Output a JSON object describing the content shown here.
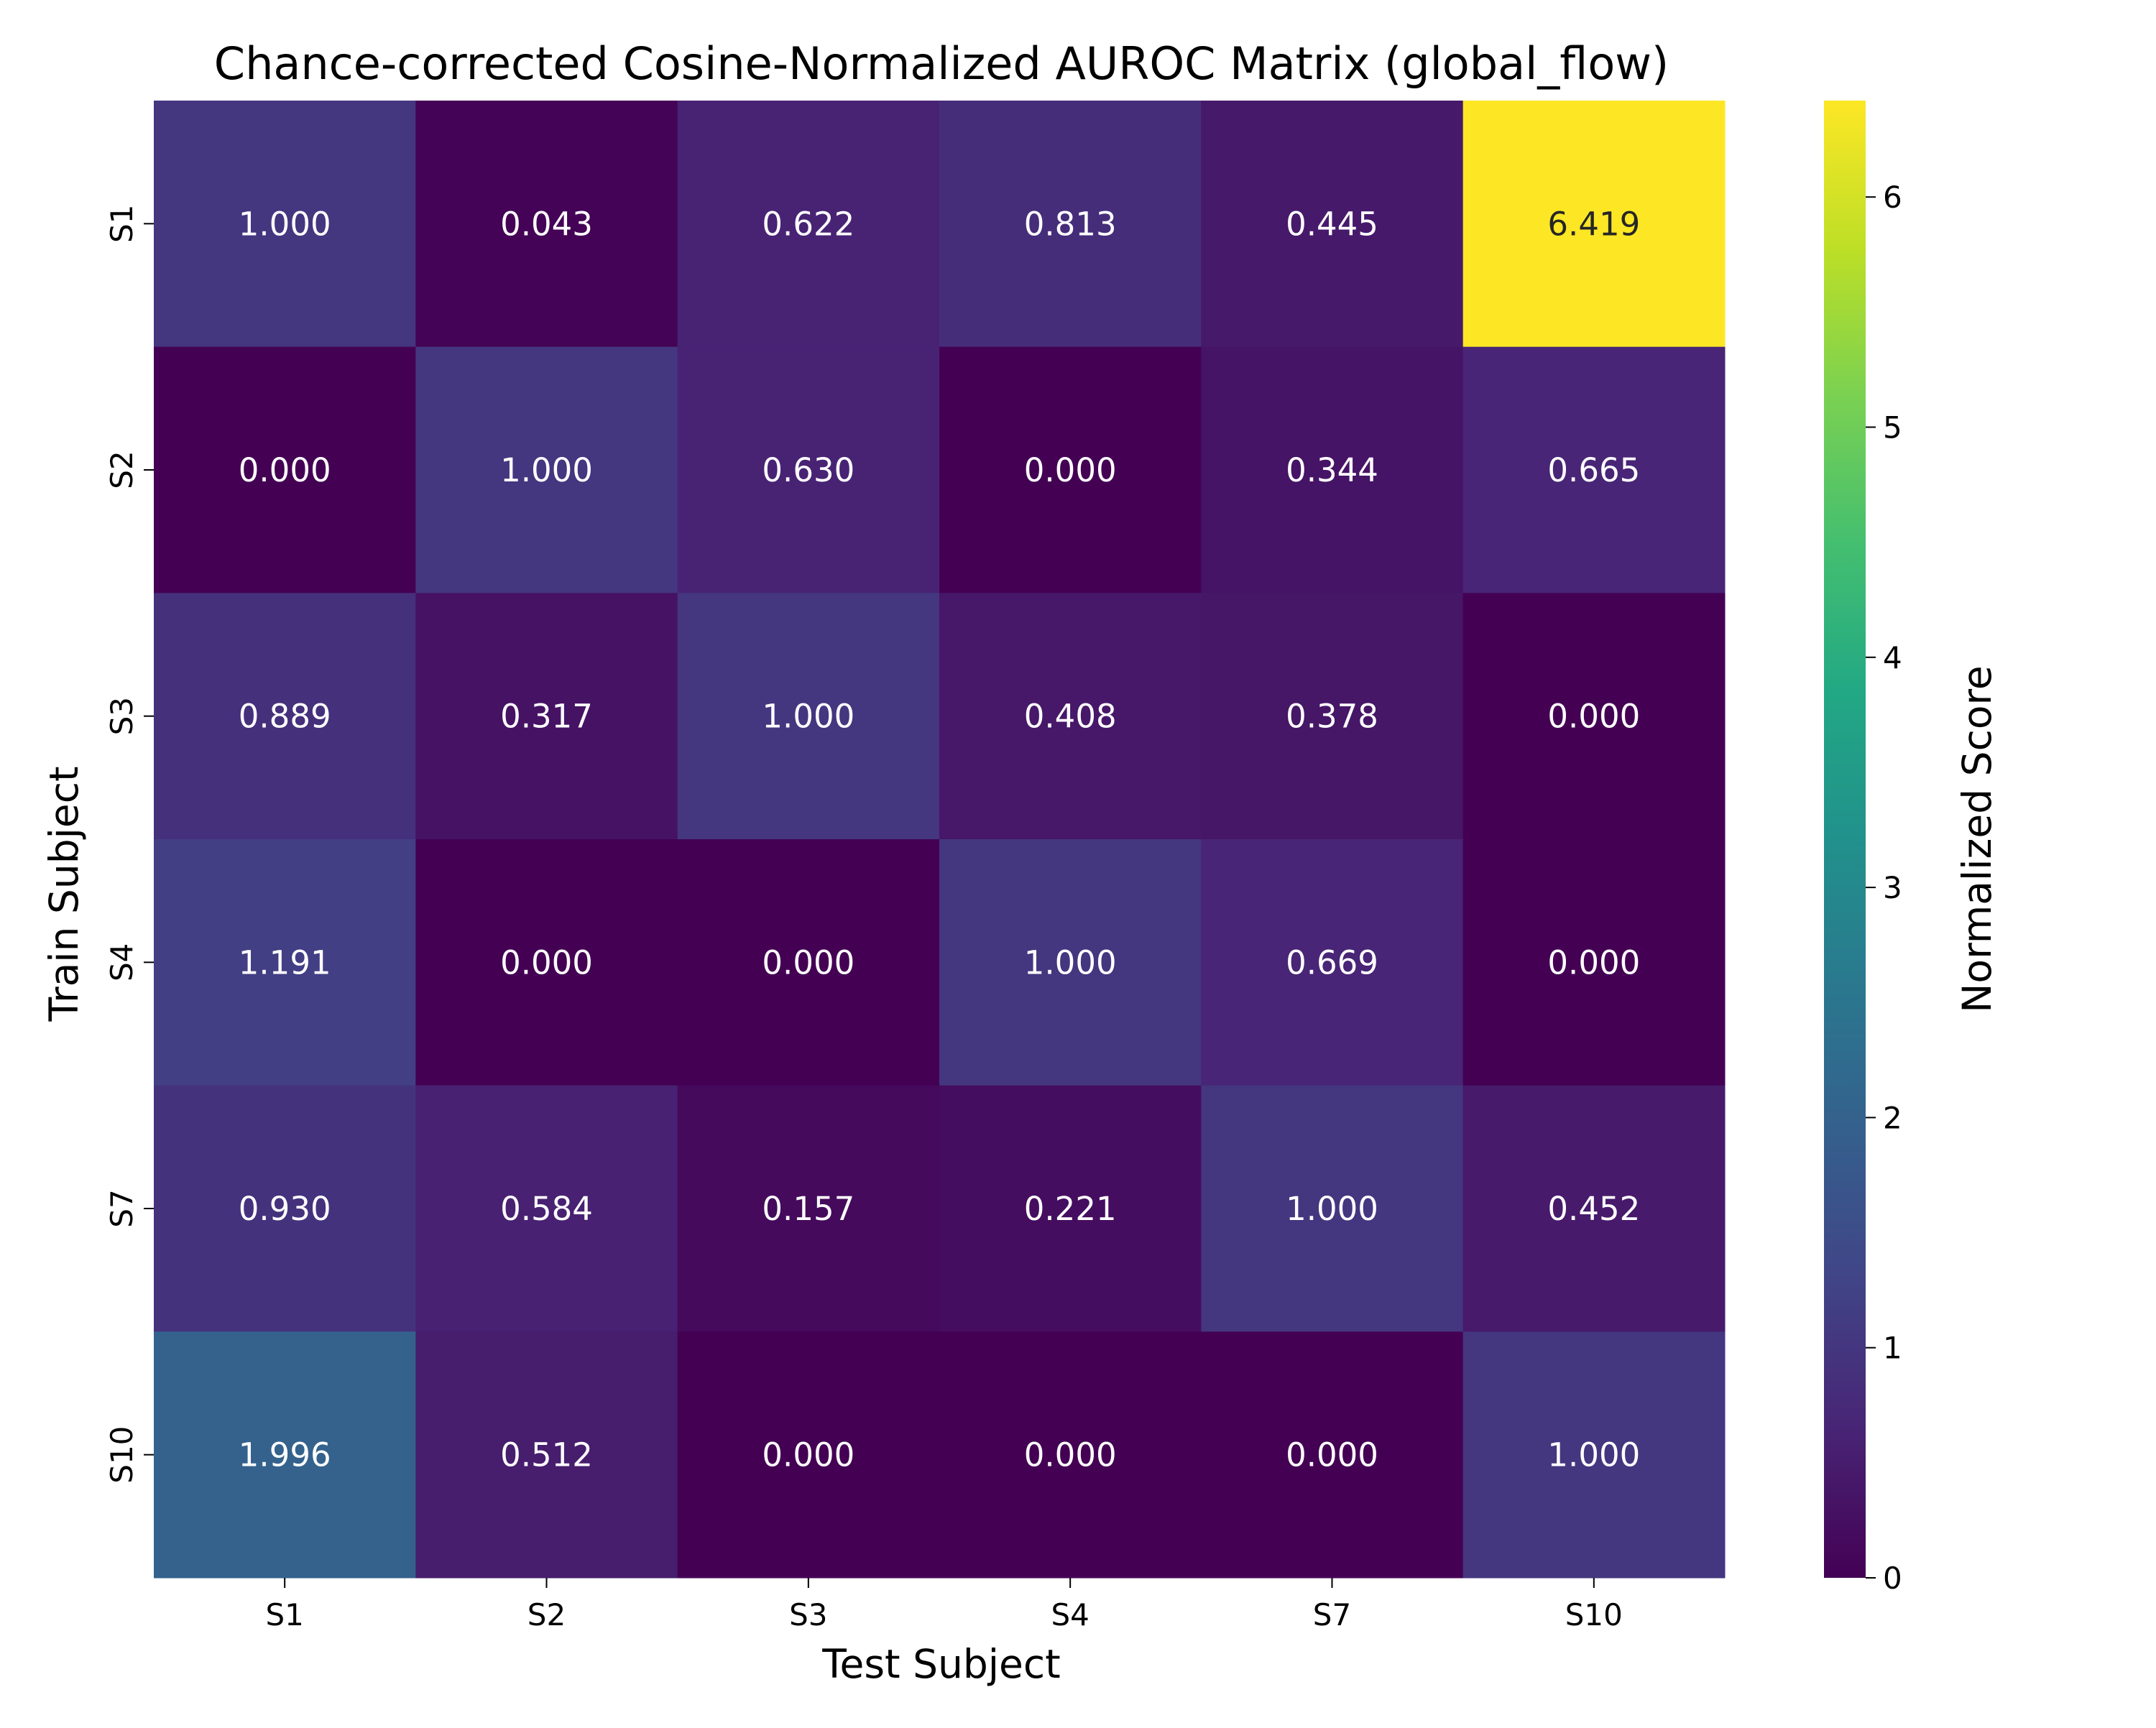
{
  "chart_data": {
    "type": "heatmap",
    "title": "Chance-corrected Cosine-Normalized AUROC Matrix (global_flow)",
    "xlabel": "Test Subject",
    "ylabel": "Train Subject",
    "x_categories": [
      "S1",
      "S2",
      "S3",
      "S4",
      "S7",
      "S10"
    ],
    "y_categories": [
      "S1",
      "S2",
      "S3",
      "S4",
      "S7",
      "S10"
    ],
    "values": [
      [
        1.0,
        0.043,
        0.622,
        0.813,
        0.445,
        6.419
      ],
      [
        0.0,
        1.0,
        0.63,
        0.0,
        0.344,
        0.665
      ],
      [
        0.889,
        0.317,
        1.0,
        0.408,
        0.378,
        0.0
      ],
      [
        1.191,
        0.0,
        0.0,
        1.0,
        0.669,
        0.0
      ],
      [
        0.93,
        0.584,
        0.157,
        0.221,
        1.0,
        0.452
      ],
      [
        1.996,
        0.512,
        0.0,
        0.0,
        0.0,
        1.0
      ]
    ],
    "value_format": "0.000",
    "colormap": "viridis",
    "color_range": [
      0,
      6.419
    ],
    "colorbar": {
      "label": "Normalized Score",
      "ticks": [
        0,
        1,
        2,
        3,
        4,
        5,
        6
      ]
    },
    "grid": false
  }
}
